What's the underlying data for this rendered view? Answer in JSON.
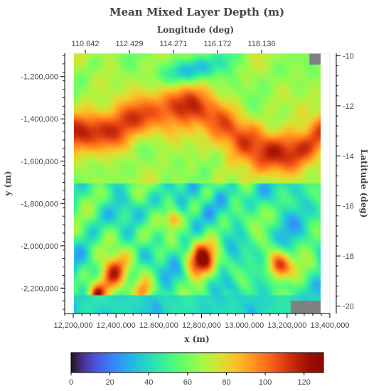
{
  "chart_data": {
    "type": "heatmap",
    "title": "Mean Mixed Layer Depth (m)",
    "xlabel": "x (m)",
    "ylabel": "y (m)",
    "top_axis_label": "Longitude (deg)",
    "right_axis_label": "Latitude (deg)",
    "xlim": [
      12160000,
      13400000
    ],
    "ylim": [
      -2320000,
      -1090000
    ],
    "x_ticks": [
      12200000,
      12400000,
      12600000,
      12800000,
      13000000,
      13200000,
      13400000
    ],
    "x_tick_labels": [
      "12,200,000",
      "12,400,000",
      "12,600,000",
      "12,800,000",
      "13,000,000",
      "13,200,000",
      "13,400,000"
    ],
    "y_ticks": [
      -1200000,
      -1400000,
      -1600000,
      -1800000,
      -2000000,
      -2200000
    ],
    "y_tick_labels": [
      "-1,200,000",
      "-1,400,000",
      "-1,600,000",
      "-1,800,000",
      "-2,000,000",
      "-2,200,000"
    ],
    "lon_ticks": [
      110.642,
      112.429,
      114.271,
      116.172,
      118.136
    ],
    "lon_tick_labels": [
      "110.642",
      "112.429",
      "114.271",
      "116.172",
      "118.136"
    ],
    "lat_ticks": [
      -10,
      -12,
      -14,
      -16,
      -18,
      -20
    ],
    "lat_tick_labels": [
      "-10",
      "-12",
      "-14",
      "-16",
      "-18",
      "-20"
    ],
    "lat_range": [
      -9.9,
      -20.3
    ],
    "colorbar": {
      "min": 0,
      "max": 130,
      "ticks": [
        0,
        20,
        40,
        60,
        80,
        100,
        120
      ],
      "tick_labels": [
        "0",
        "20",
        "40",
        "60",
        "80",
        "100",
        "120"
      ],
      "colormap": "turbo"
    },
    "missing_value_color": "#808080",
    "features": [
      {
        "x": 12330000,
        "y": -1330000,
        "value": 110,
        "note": "deep band NW"
      },
      {
        "x": 12950000,
        "y": -1500000,
        "value": 112,
        "note": "deep band center"
      },
      {
        "x": 13250000,
        "y": -1330000,
        "value": 98
      },
      {
        "x": 12600000,
        "y": -1150000,
        "value": 72
      },
      {
        "x": 12450000,
        "y": -1740000,
        "value": 30
      },
      {
        "x": 12800000,
        "y": -1830000,
        "value": 35
      },
      {
        "x": 12350000,
        "y": -2100000,
        "value": 115
      },
      {
        "x": 12850000,
        "y": -2030000,
        "value": 118
      },
      {
        "x": 13200000,
        "y": -2050000,
        "value": 120
      },
      {
        "x": 12900000,
        "y": -2270000,
        "value": 50
      },
      {
        "x": 13250000,
        "y": -2270000,
        "value": 32
      }
    ]
  }
}
